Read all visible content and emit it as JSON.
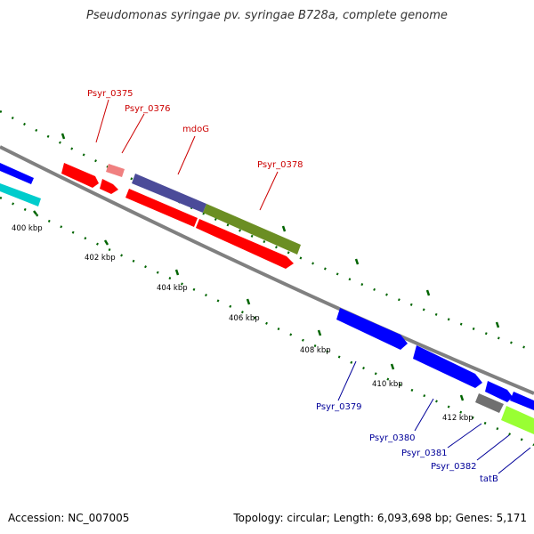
{
  "header": {
    "title": "Pseudomonas syringae pv. syringae B728a, complete genome"
  },
  "footer": {
    "accession": "Accession: NC_007005",
    "summary": "Topology: circular; Length: 6,093,698 bp; Genes: 5,171"
  },
  "ticks": [
    "400 kbp",
    "402 kbp",
    "404 kbp",
    "406 kbp",
    "408 kbp",
    "410 kbp",
    "412 kbp"
  ],
  "genes": {
    "psyr_0375": "Psyr_0375",
    "psyr_0376": "Psyr_0376",
    "mdoG": "mdoG",
    "psyr_0378": "Psyr_0378",
    "psyr_0379": "Psyr_0379",
    "psyr_0380": "Psyr_0380",
    "psyr_0381": "Psyr_0381",
    "psyr_0382": "Psyr_0382",
    "tatB": "tatB"
  },
  "colors": {
    "backbone": "#808080",
    "red": "#ff0000",
    "blue": "#0000ff",
    "navy": "#4b4b99",
    "olive": "#6b8e23",
    "cyan": "#00cccc",
    "pink": "#f08080",
    "gray": "#707070",
    "lime": "#99ff33",
    "tick": "#006400",
    "label_red": "#cc0000",
    "label_blue": "#000099"
  }
}
